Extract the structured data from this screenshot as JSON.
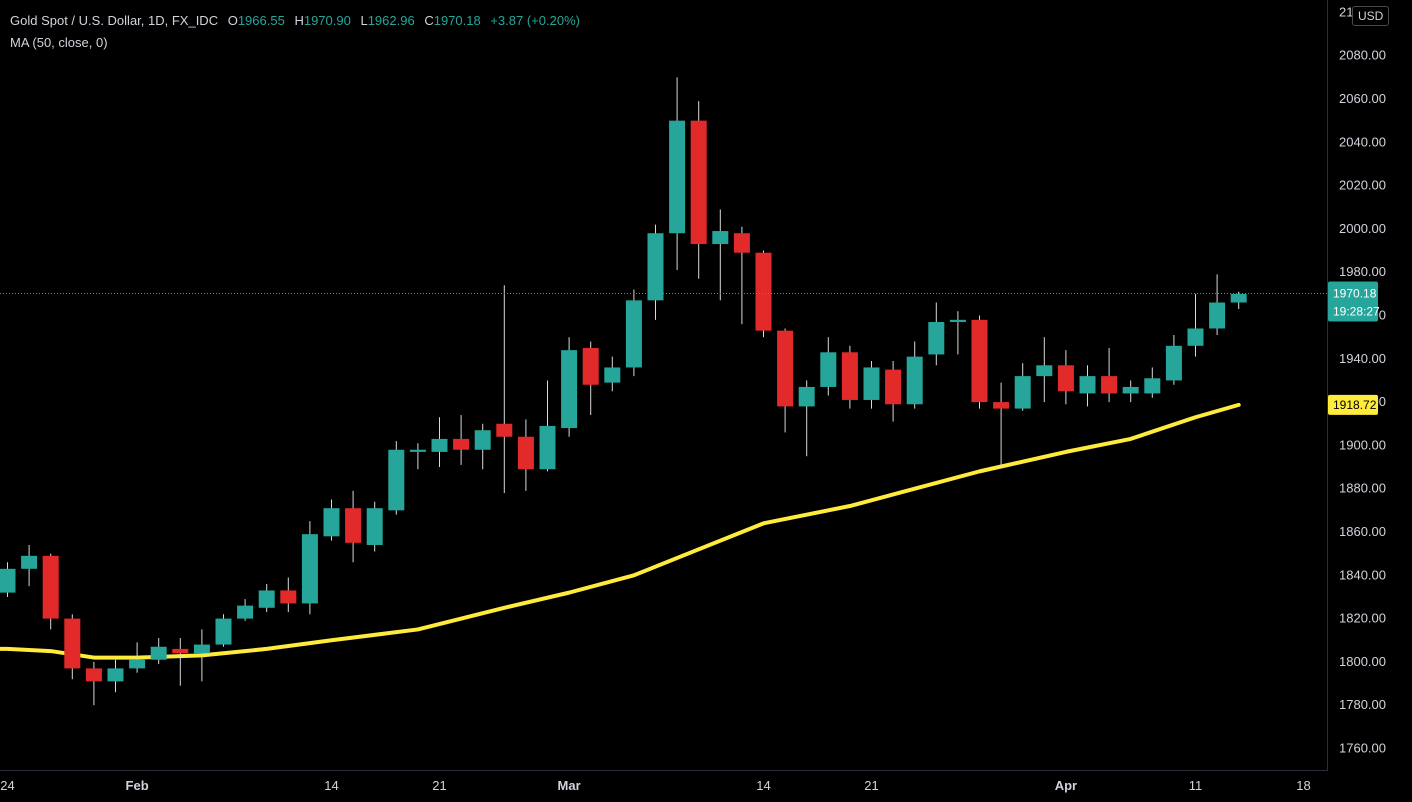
{
  "legend": {
    "symbol": "Gold Spot / U.S. Dollar, 1D, FX_IDC",
    "open_label": "O",
    "open": "1966.55",
    "high_label": "H",
    "high": "1970.90",
    "low_label": "L",
    "low": "1962.96",
    "close_label": "C",
    "close": "1970.18",
    "change": "+3.87 (+0.20%)",
    "indicator": "MA (50, close, 0)"
  },
  "currency_label": "USD",
  "price_tag": {
    "price": "1970.18",
    "countdown": "19:28:27",
    "color": "#26a69a"
  },
  "ma_tag": {
    "value": "1918.72",
    "color": "#ffeb3b"
  },
  "colors": {
    "up": "#26a69a",
    "down": "#e32a2a",
    "ma": "#ffeb3b",
    "background": "#000000",
    "axis_text": "#d1d4dc"
  },
  "chart_data": {
    "type": "candlestick",
    "y_axis": {
      "ticks": [
        1760,
        1780,
        1800,
        1820,
        1840,
        1860,
        1880,
        1900,
        1920,
        1940,
        1960,
        1980,
        2000,
        2020,
        2040,
        2060,
        2080,
        2100
      ],
      "tick_labels": [
        "1760.00",
        "1780.00",
        "1800.00",
        "1820.00",
        "1840.00",
        "1860.00",
        "1880.00",
        "1900.00",
        "1920.00",
        "1940.00",
        "1960.00",
        "1980.00",
        "2000.00",
        "2020.00",
        "2040.00",
        "2060.00",
        "2080.00",
        "2100.00"
      ],
      "side": "right"
    },
    "x_axis": {
      "labels": [
        {
          "text": "24",
          "date": "2022-01-24"
        },
        {
          "text": "Feb",
          "date": "2022-02-01"
        },
        {
          "text": "14",
          "date": "2022-02-14"
        },
        {
          "text": "21",
          "date": "2022-02-21"
        },
        {
          "text": "Mar",
          "date": "2022-03-01"
        },
        {
          "text": "14",
          "date": "2022-03-14"
        },
        {
          "text": "21",
          "date": "2022-03-21"
        },
        {
          "text": "Apr",
          "date": "2022-04-01"
        },
        {
          "text": "11",
          "date": "2022-04-11"
        },
        {
          "text": "18",
          "date": "2022-04-18"
        }
      ]
    },
    "candles": [
      {
        "date": "2022-01-24",
        "open": 1832,
        "high": 1846,
        "low": 1830,
        "close": 1843
      },
      {
        "date": "2022-01-25",
        "open": 1843,
        "high": 1854,
        "low": 1835,
        "close": 1849
      },
      {
        "date": "2022-01-26",
        "open": 1849,
        "high": 1850,
        "low": 1815,
        "close": 1820
      },
      {
        "date": "2022-01-27",
        "open": 1820,
        "high": 1822,
        "low": 1792,
        "close": 1797
      },
      {
        "date": "2022-01-28",
        "open": 1797,
        "high": 1800,
        "low": 1780,
        "close": 1791
      },
      {
        "date": "2022-01-31",
        "open": 1791,
        "high": 1801,
        "low": 1786,
        "close": 1797
      },
      {
        "date": "2022-02-01",
        "open": 1797,
        "high": 1809,
        "low": 1795,
        "close": 1801
      },
      {
        "date": "2022-02-02",
        "open": 1801,
        "high": 1811,
        "low": 1799,
        "close": 1807
      },
      {
        "date": "2022-02-03",
        "open": 1806,
        "high": 1811,
        "low": 1789,
        "close": 1804
      },
      {
        "date": "2022-02-04",
        "open": 1804,
        "high": 1815,
        "low": 1791,
        "close": 1808
      },
      {
        "date": "2022-02-07",
        "open": 1808,
        "high": 1822,
        "low": 1807,
        "close": 1820
      },
      {
        "date": "2022-02-08",
        "open": 1820,
        "high": 1829,
        "low": 1819,
        "close": 1826
      },
      {
        "date": "2022-02-09",
        "open": 1825,
        "high": 1836,
        "low": 1823,
        "close": 1833
      },
      {
        "date": "2022-02-10",
        "open": 1833,
        "high": 1839,
        "low": 1823,
        "close": 1827
      },
      {
        "date": "2022-02-11",
        "open": 1827,
        "high": 1865,
        "low": 1822,
        "close": 1859
      },
      {
        "date": "2022-02-14",
        "open": 1858,
        "high": 1875,
        "low": 1856,
        "close": 1871
      },
      {
        "date": "2022-02-15",
        "open": 1871,
        "high": 1879,
        "low": 1846,
        "close": 1855
      },
      {
        "date": "2022-02-16",
        "open": 1854,
        "high": 1874,
        "low": 1851,
        "close": 1871
      },
      {
        "date": "2022-02-17",
        "open": 1870,
        "high": 1902,
        "low": 1868,
        "close": 1898
      },
      {
        "date": "2022-02-18",
        "open": 1897,
        "high": 1901,
        "low": 1889,
        "close": 1898
      },
      {
        "date": "2022-02-21",
        "open": 1897,
        "high": 1913,
        "low": 1890,
        "close": 1903
      },
      {
        "date": "2022-02-22",
        "open": 1903,
        "high": 1914,
        "low": 1891,
        "close": 1898
      },
      {
        "date": "2022-02-23",
        "open": 1898,
        "high": 1910,
        "low": 1889,
        "close": 1907
      },
      {
        "date": "2022-02-24",
        "open": 1910,
        "high": 1974,
        "low": 1878,
        "close": 1904
      },
      {
        "date": "2022-02-25",
        "open": 1904,
        "high": 1912,
        "low": 1879,
        "close": 1889
      },
      {
        "date": "2022-02-28",
        "open": 1889,
        "high": 1930,
        "low": 1888,
        "close": 1909
      },
      {
        "date": "2022-03-01",
        "open": 1908,
        "high": 1950,
        "low": 1904,
        "close": 1944
      },
      {
        "date": "2022-03-02",
        "open": 1945,
        "high": 1948,
        "low": 1914,
        "close": 1928
      },
      {
        "date": "2022-03-03",
        "open": 1929,
        "high": 1941,
        "low": 1925,
        "close": 1936
      },
      {
        "date": "2022-03-04",
        "open": 1936,
        "high": 1972,
        "low": 1932,
        "close": 1967
      },
      {
        "date": "2022-03-07",
        "open": 1967,
        "high": 2002,
        "low": 1958,
        "close": 1998
      },
      {
        "date": "2022-03-08",
        "open": 1998,
        "high": 2070,
        "low": 1981,
        "close": 2050
      },
      {
        "date": "2022-03-09",
        "open": 2050,
        "high": 2059,
        "low": 1977,
        "close": 1993
      },
      {
        "date": "2022-03-10",
        "open": 1993,
        "high": 2009,
        "low": 1967,
        "close": 1999
      },
      {
        "date": "2022-03-11",
        "open": 1998,
        "high": 2001,
        "low": 1956,
        "close": 1989
      },
      {
        "date": "2022-03-14",
        "open": 1989,
        "high": 1990,
        "low": 1950,
        "close": 1953
      },
      {
        "date": "2022-03-15",
        "open": 1953,
        "high": 1954,
        "low": 1906,
        "close": 1918
      },
      {
        "date": "2022-03-16",
        "open": 1918,
        "high": 1930,
        "low": 1895,
        "close": 1927
      },
      {
        "date": "2022-03-17",
        "open": 1927,
        "high": 1950,
        "low": 1923,
        "close": 1943
      },
      {
        "date": "2022-03-18",
        "open": 1943,
        "high": 1946,
        "low": 1917,
        "close": 1921
      },
      {
        "date": "2022-03-21",
        "open": 1921,
        "high": 1939,
        "low": 1917,
        "close": 1936
      },
      {
        "date": "2022-03-22",
        "open": 1935,
        "high": 1939,
        "low": 1911,
        "close": 1919
      },
      {
        "date": "2022-03-23",
        "open": 1919,
        "high": 1948,
        "low": 1917,
        "close": 1941
      },
      {
        "date": "2022-03-24",
        "open": 1942,
        "high": 1966,
        "low": 1937,
        "close": 1957
      },
      {
        "date": "2022-03-25",
        "open": 1957,
        "high": 1962,
        "low": 1942,
        "close": 1958
      },
      {
        "date": "2022-03-28",
        "open": 1958,
        "high": 1960,
        "low": 1917,
        "close": 1920
      },
      {
        "date": "2022-03-29",
        "open": 1920,
        "high": 1929,
        "low": 1890,
        "close": 1917
      },
      {
        "date": "2022-03-30",
        "open": 1917,
        "high": 1938,
        "low": 1916,
        "close": 1932
      },
      {
        "date": "2022-03-31",
        "open": 1932,
        "high": 1950,
        "low": 1920,
        "close": 1937
      },
      {
        "date": "2022-04-01",
        "open": 1937,
        "high": 1944,
        "low": 1919,
        "close": 1925
      },
      {
        "date": "2022-04-04",
        "open": 1924,
        "high": 1937,
        "low": 1918,
        "close": 1932
      },
      {
        "date": "2022-04-05",
        "open": 1932,
        "high": 1945,
        "low": 1920,
        "close": 1924
      },
      {
        "date": "2022-04-06",
        "open": 1924,
        "high": 1930,
        "low": 1920,
        "close": 1927
      },
      {
        "date": "2022-04-07",
        "open": 1924,
        "high": 1936,
        "low": 1922,
        "close": 1931
      },
      {
        "date": "2022-04-08",
        "open": 1930,
        "high": 1951,
        "low": 1928,
        "close": 1946
      },
      {
        "date": "2022-04-11",
        "open": 1946,
        "high": 1970,
        "low": 1941,
        "close": 1954
      },
      {
        "date": "2022-04-12",
        "open": 1954,
        "high": 1979,
        "low": 1951,
        "close": 1966
      },
      {
        "date": "2022-04-13",
        "open": 1966,
        "high": 1971,
        "low": 1963,
        "close": 1970
      }
    ],
    "moving_average": {
      "name": "MA (50, close, 0)",
      "points": [
        {
          "date": "2022-01-24",
          "value": 1806
        },
        {
          "date": "2022-01-26",
          "value": 1805
        },
        {
          "date": "2022-01-28",
          "value": 1802
        },
        {
          "date": "2022-02-01",
          "value": 1802
        },
        {
          "date": "2022-02-04",
          "value": 1803
        },
        {
          "date": "2022-02-09",
          "value": 1806
        },
        {
          "date": "2022-02-14",
          "value": 1810
        },
        {
          "date": "2022-02-18",
          "value": 1815
        },
        {
          "date": "2022-02-24",
          "value": 1825
        },
        {
          "date": "2022-03-01",
          "value": 1832
        },
        {
          "date": "2022-03-04",
          "value": 1840
        },
        {
          "date": "2022-03-09",
          "value": 1852
        },
        {
          "date": "2022-03-14",
          "value": 1864
        },
        {
          "date": "2022-03-18",
          "value": 1872
        },
        {
          "date": "2022-03-23",
          "value": 1880
        },
        {
          "date": "2022-03-28",
          "value": 1888
        },
        {
          "date": "2022-04-01",
          "value": 1897
        },
        {
          "date": "2022-04-06",
          "value": 1903
        },
        {
          "date": "2022-04-11",
          "value": 1913
        },
        {
          "date": "2022-04-13",
          "value": 1918.72
        }
      ]
    },
    "last_price": 1970.18,
    "grid": false,
    "legend_position": "top-left"
  }
}
